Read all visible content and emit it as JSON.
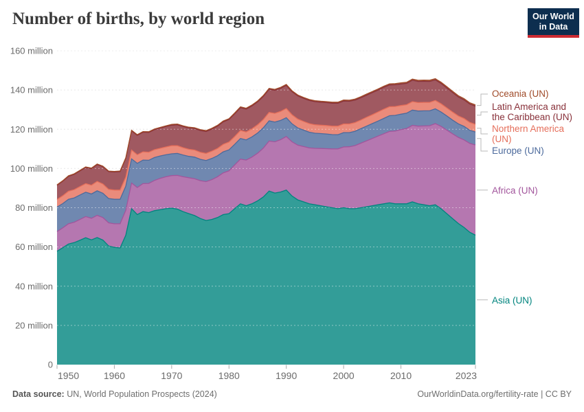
{
  "header": {
    "title": "Number of births, by world region",
    "logo_line1": "Our World",
    "logo_line2": "in Data"
  },
  "footer": {
    "source_label": "Data source:",
    "source_text": " UN, World Population Prospects (2024)",
    "right_text": "OurWorldinData.org/fertility-rate | CC BY"
  },
  "colors": {
    "background": "#ffffff",
    "title_text": "#3a3a3a",
    "axis_text": "#6b6b6b",
    "gridline": "#dcdcdc",
    "logo_bg": "#0d2e4f",
    "logo_underline": "#cd2b32",
    "connector": "#b8b8b8"
  },
  "chart_data": {
    "type": "area",
    "stacked": true,
    "title": "Number of births, by world region",
    "xlabel": "",
    "ylabel": "",
    "unit": "million births",
    "legend_position": "right",
    "grid": true,
    "ylim": [
      0,
      160
    ],
    "y_ticks": [
      0,
      20,
      40,
      60,
      80,
      100,
      120,
      140,
      160
    ],
    "y_tick_labels": [
      "0",
      "20 million",
      "40 million",
      "60 million",
      "80 million",
      "100 million",
      "120 million",
      "140 million",
      "160 million"
    ],
    "x_ticks": [
      1950,
      1960,
      1970,
      1980,
      1990,
      2000,
      2010,
      2023
    ],
    "x_tick_labels": [
      "1950",
      "1960",
      "1970",
      "1980",
      "1990",
      "2000",
      "2010",
      "2023"
    ],
    "x": [
      1950,
      1951,
      1952,
      1953,
      1954,
      1955,
      1956,
      1957,
      1958,
      1959,
      1960,
      1961,
      1962,
      1963,
      1964,
      1965,
      1966,
      1967,
      1968,
      1969,
      1970,
      1971,
      1972,
      1973,
      1974,
      1975,
      1976,
      1977,
      1978,
      1979,
      1980,
      1981,
      1982,
      1983,
      1984,
      1985,
      1986,
      1987,
      1988,
      1989,
      1990,
      1991,
      1992,
      1993,
      1994,
      1995,
      1996,
      1997,
      1998,
      1999,
      2000,
      2001,
      2002,
      2003,
      2004,
      2005,
      2006,
      2007,
      2008,
      2009,
      2010,
      2011,
      2012,
      2013,
      2014,
      2015,
      2016,
      2017,
      2018,
      2019,
      2020,
      2021,
      2022,
      2023
    ],
    "series": [
      {
        "id": "asia",
        "name": "Asia (UN)",
        "label_lines": [
          "Asia (UN)"
        ],
        "color": "#00847E",
        "fill": "#339D98",
        "values": [
          57.8,
          59.6,
          61.5,
          62.2,
          63.4,
          64.7,
          63.6,
          64.8,
          63.5,
          60.5,
          59.8,
          59.5,
          66.0,
          79.5,
          76.5,
          78.0,
          77.5,
          78.5,
          79.0,
          79.5,
          79.8,
          79.3,
          78.0,
          77.0,
          76.0,
          74.5,
          73.5,
          74.0,
          75.0,
          76.5,
          77.0,
          79.5,
          82.0,
          81.0,
          82.0,
          83.5,
          85.5,
          88.5,
          87.5,
          88.0,
          89.0,
          86.0,
          84.0,
          83.0,
          82.0,
          81.5,
          81.0,
          80.5,
          80.0,
          79.5,
          80.0,
          79.5,
          79.5,
          80.0,
          80.5,
          81.0,
          81.5,
          82.0,
          82.5,
          82.0,
          82.0,
          82.0,
          83.0,
          82.0,
          81.5,
          81.0,
          81.5,
          79.5,
          77.0,
          74.5,
          72.0,
          70.0,
          67.5,
          66.0
        ]
      },
      {
        "id": "africa",
        "name": "Africa (UN)",
        "label_lines": [
          "Africa (UN)"
        ],
        "color": "#A2559C",
        "fill": "#B577B0",
        "values": [
          10.0,
          10.1,
          10.3,
          10.4,
          10.6,
          10.8,
          11.0,
          11.3,
          11.5,
          11.8,
          12.0,
          12.3,
          12.7,
          13.1,
          13.8,
          14.3,
          14.9,
          15.4,
          16.0,
          16.3,
          16.6,
          17.2,
          17.8,
          18.3,
          18.8,
          19.3,
          19.8,
          20.3,
          20.8,
          21.3,
          21.8,
          22.3,
          22.8,
          23.3,
          23.8,
          24.3,
          24.9,
          25.5,
          26.1,
          26.7,
          27.3,
          27.6,
          27.9,
          28.2,
          28.5,
          28.8,
          29.2,
          29.6,
          30.0,
          30.5,
          31.0,
          31.6,
          32.2,
          32.9,
          33.6,
          34.3,
          35.0,
          35.7,
          36.4,
          37.1,
          37.8,
          38.4,
          39.0,
          39.6,
          40.2,
          40.8,
          41.4,
          42.0,
          42.6,
          43.2,
          43.9,
          44.6,
          45.3,
          46.0
        ]
      },
      {
        "id": "europe",
        "name": "Europe (UN)",
        "label_lines": [
          "Europe (UN)"
        ],
        "color": "#4C6A9C",
        "fill": "#7088B0",
        "values": [
          12.5,
          12.4,
          12.5,
          12.4,
          12.5,
          12.4,
          12.4,
          12.5,
          12.4,
          12.4,
          12.5,
          12.5,
          12.3,
          12.3,
          12.3,
          12.0,
          11.8,
          11.7,
          11.4,
          11.2,
          11.1,
          11.2,
          11.1,
          10.9,
          11.0,
          10.9,
          10.8,
          10.8,
          10.7,
          10.7,
          10.7,
          10.5,
          10.5,
          10.3,
          10.3,
          10.3,
          10.4,
          10.3,
          10.1,
          9.8,
          9.6,
          9.2,
          8.8,
          8.4,
          8.0,
          7.7,
          7.6,
          7.5,
          7.3,
          7.2,
          7.3,
          7.2,
          7.3,
          7.4,
          7.5,
          7.6,
          7.7,
          7.8,
          8.0,
          8.0,
          7.9,
          7.8,
          7.8,
          7.7,
          7.7,
          7.6,
          7.5,
          7.3,
          7.2,
          7.0,
          6.9,
          6.9,
          6.7,
          6.6
        ]
      },
      {
        "id": "northern_america",
        "name": "Northern America (UN)",
        "label_lines": [
          "Northern America",
          "(UN)"
        ],
        "color": "#E56E5A",
        "fill": "#EA8B7B",
        "values": [
          3.9,
          4.0,
          4.1,
          4.2,
          4.3,
          4.4,
          4.5,
          4.8,
          4.7,
          4.7,
          4.7,
          4.7,
          4.6,
          4.5,
          4.4,
          4.2,
          4.1,
          4.0,
          3.9,
          4.0,
          4.1,
          3.9,
          3.7,
          3.6,
          3.6,
          3.6,
          3.6,
          3.7,
          3.7,
          3.8,
          4.0,
          4.0,
          4.1,
          4.0,
          4.1,
          4.2,
          4.2,
          4.3,
          4.4,
          4.6,
          4.7,
          4.6,
          4.5,
          4.4,
          4.4,
          4.3,
          4.3,
          4.3,
          4.3,
          4.4,
          4.4,
          4.4,
          4.4,
          4.4,
          4.5,
          4.5,
          4.6,
          4.7,
          4.6,
          4.5,
          4.4,
          4.3,
          4.3,
          4.3,
          4.3,
          4.3,
          4.3,
          4.2,
          4.1,
          4.1,
          4.0,
          4.0,
          4.0,
          3.9
        ]
      },
      {
        "id": "latin_america",
        "name": "Latin America and the Caribbean (UN)",
        "label_lines": [
          "Latin America and",
          "the Caribbean (UN)"
        ],
        "color": "#883039",
        "fill": "#A05961",
        "values": [
          7.2,
          7.4,
          7.6,
          7.8,
          8.0,
          8.2,
          8.4,
          8.6,
          8.8,
          9.0,
          9.2,
          9.4,
          9.6,
          9.8,
          9.9,
          10.0,
          10.1,
          10.2,
          10.3,
          10.4,
          10.5,
          10.7,
          10.8,
          10.9,
          11.0,
          11.1,
          11.2,
          11.3,
          11.4,
          11.5,
          11.5,
          11.6,
          11.6,
          11.7,
          11.7,
          11.7,
          11.8,
          11.8,
          11.8,
          11.8,
          11.8,
          11.8,
          11.8,
          11.8,
          11.8,
          11.8,
          11.7,
          11.7,
          11.7,
          11.7,
          11.7,
          11.6,
          11.5,
          11.4,
          11.3,
          11.3,
          11.2,
          11.2,
          11.1,
          11.1,
          11.0,
          10.9,
          10.9,
          10.8,
          10.8,
          10.7,
          10.5,
          10.4,
          10.2,
          10.0,
          9.7,
          9.5,
          9.4,
          9.3
        ]
      },
      {
        "id": "oceania",
        "name": "Oceania (UN)",
        "label_lines": [
          "Oceania (UN)"
        ],
        "color": "#A04B29",
        "fill": "#B36F54",
        "values": [
          0.27,
          0.27,
          0.28,
          0.28,
          0.29,
          0.29,
          0.3,
          0.3,
          0.31,
          0.31,
          0.32,
          0.32,
          0.33,
          0.33,
          0.34,
          0.34,
          0.35,
          0.35,
          0.36,
          0.36,
          0.37,
          0.37,
          0.38,
          0.38,
          0.39,
          0.39,
          0.4,
          0.4,
          0.41,
          0.41,
          0.42,
          0.42,
          0.43,
          0.43,
          0.44,
          0.44,
          0.45,
          0.45,
          0.46,
          0.46,
          0.47,
          0.47,
          0.48,
          0.48,
          0.49,
          0.49,
          0.5,
          0.5,
          0.51,
          0.51,
          0.52,
          0.52,
          0.53,
          0.53,
          0.54,
          0.54,
          0.55,
          0.55,
          0.56,
          0.56,
          0.57,
          0.57,
          0.58,
          0.58,
          0.59,
          0.6,
          0.6,
          0.61,
          0.62,
          0.62,
          0.63,
          0.64,
          0.64,
          0.65
        ]
      }
    ]
  }
}
